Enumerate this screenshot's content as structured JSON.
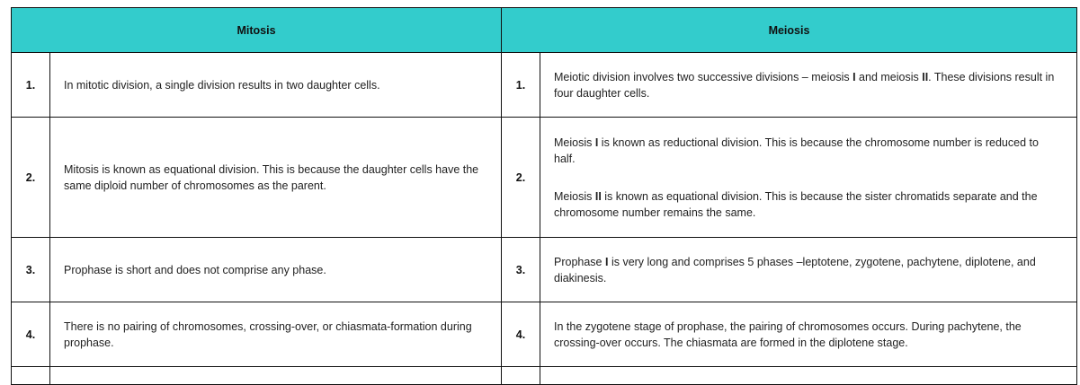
{
  "header": {
    "mitosis": "Mitosis",
    "meiosis": "Meiosis",
    "accent_color": "#33cccc"
  },
  "rows": [
    {
      "num": "1.",
      "mitosis": "In mitotic division, a single division results in two daughter cells.",
      "meiosis_parts": [
        "Meiotic division involves two successive divisions – meiosis ",
        "I",
        " and meiosis ",
        "II",
        ". These divisions result in four daughter cells."
      ]
    },
    {
      "num": "2.",
      "mitosis": "Mitosis is known as equational division. This is because the daughter cells have the same diploid number of chromosomes as the parent.",
      "meiosis_p1": [
        "Meiosis ",
        "I",
        " is known as reductional division. This is because the chromosome number is reduced to half."
      ],
      "meiosis_p2": [
        "Meiosis ",
        "II",
        " is known as equational division. This is because the sister chromatids separate and the chromosome number remains the same."
      ]
    },
    {
      "num": "3.",
      "mitosis": "Prophase is short and does not comprise any phase.",
      "meiosis_parts": [
        "Prophase ",
        "I",
        " is very long and comprises 5 phases –leptotene, zygotene, pachytene, diplotene, and diakinesis."
      ]
    },
    {
      "num": "4.",
      "mitosis": "There is no pairing of chromosomes, crossing-over, or chiasmata-formation during prophase.",
      "meiosis": "In the zygotene stage of prophase, the pairing of chromosomes occurs. During pachytene, the crossing-over occurs. The chiasmata are formed in the diplotene stage."
    }
  ]
}
